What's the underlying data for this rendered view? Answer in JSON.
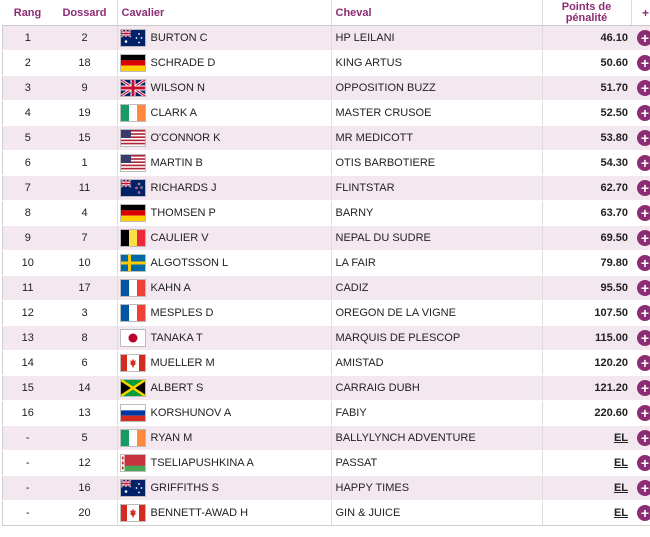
{
  "headers": {
    "rang": "Rang",
    "dossard": "Dossard",
    "cavalier": "Cavalier",
    "cheval": "Cheval",
    "points": "Points de pénalité",
    "plus": "+"
  },
  "colors": {
    "accent": "#8b2c74",
    "row_alt": "#f4e8f0"
  },
  "rows": [
    {
      "rang": "1",
      "dossard": "2",
      "flag": "AUS",
      "cavalier": "BURTON C",
      "cheval": "HP LEILANI",
      "points": "46.10",
      "action": "+"
    },
    {
      "rang": "2",
      "dossard": "18",
      "flag": "GER",
      "cavalier": "SCHRADE D",
      "cheval": "KING ARTUS",
      "points": "50.60",
      "action": "+"
    },
    {
      "rang": "3",
      "dossard": "9",
      "flag": "GBR",
      "cavalier": "WILSON N",
      "cheval": "OPPOSITION BUZZ",
      "points": "51.70",
      "action": "+"
    },
    {
      "rang": "4",
      "dossard": "19",
      "flag": "IRL",
      "cavalier": "CLARK A",
      "cheval": "MASTER CRUSOE",
      "points": "52.50",
      "action": "+"
    },
    {
      "rang": "5",
      "dossard": "15",
      "flag": "USA",
      "cavalier": "O'CONNOR K",
      "cheval": "MR MEDICOTT",
      "points": "53.80",
      "action": "+"
    },
    {
      "rang": "6",
      "dossard": "1",
      "flag": "USA",
      "cavalier": "MARTIN B",
      "cheval": "OTIS BARBOTIERE",
      "points": "54.30",
      "action": "+"
    },
    {
      "rang": "7",
      "dossard": "11",
      "flag": "NZL",
      "cavalier": "RICHARDS J",
      "cheval": "FLINTSTAR",
      "points": "62.70",
      "action": "+"
    },
    {
      "rang": "8",
      "dossard": "4",
      "flag": "GER",
      "cavalier": "THOMSEN P",
      "cheval": "BARNY",
      "points": "63.70",
      "action": "+"
    },
    {
      "rang": "9",
      "dossard": "7",
      "flag": "BEL",
      "cavalier": "CAULIER V",
      "cheval": "NEPAL DU SUDRE",
      "points": "69.50",
      "action": "+"
    },
    {
      "rang": "10",
      "dossard": "10",
      "flag": "SWE",
      "cavalier": "ALGOTSSON L",
      "cheval": "LA FAIR",
      "points": "79.80",
      "action": "+"
    },
    {
      "rang": "11",
      "dossard": "17",
      "flag": "FRA",
      "cavalier": "KAHN A",
      "cheval": "CADIZ",
      "points": "95.50",
      "action": "+"
    },
    {
      "rang": "12",
      "dossard": "3",
      "flag": "FRA",
      "cavalier": "MESPLES D",
      "cheval": "OREGON DE LA VIGNE",
      "points": "107.50",
      "action": "+"
    },
    {
      "rang": "13",
      "dossard": "8",
      "flag": "JPN",
      "cavalier": "TANAKA T",
      "cheval": "MARQUIS DE PLESCOP",
      "points": "115.00",
      "action": "+"
    },
    {
      "rang": "14",
      "dossard": "6",
      "flag": "CAN",
      "cavalier": "MUELLER M",
      "cheval": "AMISTAD",
      "points": "120.20",
      "action": "+"
    },
    {
      "rang": "15",
      "dossard": "14",
      "flag": "JAM",
      "cavalier": "ALBERT S",
      "cheval": "CARRAIG DUBH",
      "points": "121.20",
      "action": "+"
    },
    {
      "rang": "16",
      "dossard": "13",
      "flag": "RUS",
      "cavalier": "KORSHUNOV A",
      "cheval": "FABIY",
      "points": "220.60",
      "action": "+"
    },
    {
      "rang": "-",
      "dossard": "5",
      "flag": "IRL",
      "cavalier": "RYAN M",
      "cheval": "BALLYLYNCH ADVENTURE",
      "points": "EL",
      "action": "+"
    },
    {
      "rang": "-",
      "dossard": "12",
      "flag": "BLR",
      "cavalier": "TSELIAPUSHKINA A",
      "cheval": "PASSAT",
      "points": "EL",
      "action": "+"
    },
    {
      "rang": "-",
      "dossard": "16",
      "flag": "AUS",
      "cavalier": "GRIFFITHS S",
      "cheval": "HAPPY TIMES",
      "points": "EL",
      "action": "+"
    },
    {
      "rang": "-",
      "dossard": "20",
      "flag": "CAN",
      "cavalier": "BENNETT-AWAD H",
      "cheval": "GIN & JUICE",
      "points": "EL",
      "action": "+"
    }
  ]
}
